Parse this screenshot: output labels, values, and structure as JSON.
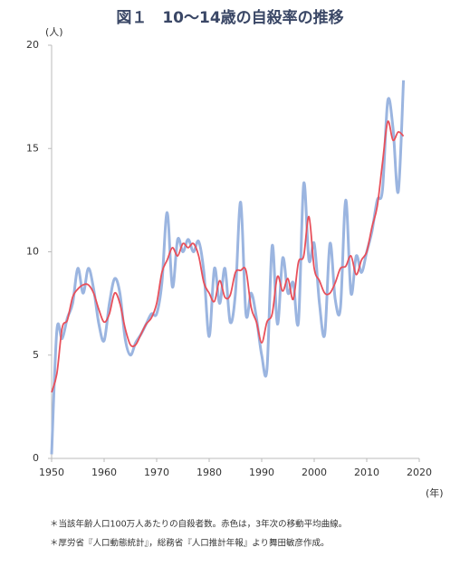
{
  "chart_data": {
    "type": "line",
    "title": "図１　10〜14歳の自殺率の推移",
    "y_label": "(人)",
    "x_label": "(年)",
    "notes": [
      "＊当該年齢人口100万人あたりの自殺者数。赤色は，3年次の移動平均曲線。",
      "＊厚労省『人口動態統計』，総務省『人口推計年報』より舞田敏彦作成。"
    ],
    "x": [
      1950,
      1951,
      1952,
      1953,
      1954,
      1955,
      1956,
      1957,
      1958,
      1959,
      1960,
      1961,
      1962,
      1963,
      1964,
      1965,
      1966,
      1967,
      1968,
      1969,
      1970,
      1971,
      1972,
      1973,
      1974,
      1975,
      1976,
      1977,
      1978,
      1979,
      1980,
      1981,
      1982,
      1983,
      1984,
      1985,
      1986,
      1987,
      1988,
      1989,
      1990,
      1991,
      1992,
      1993,
      1994,
      1995,
      1996,
      1997,
      1998,
      1999,
      2000,
      2001,
      2002,
      2003,
      2004,
      2005,
      2006,
      2007,
      2008,
      2009,
      2010,
      2011,
      2012,
      2013,
      2014,
      2015,
      2016,
      2017
    ],
    "series": [
      {
        "color": "#9bb5e0",
        "values": [
          0.2,
          6.2,
          5.8,
          6.8,
          7.5,
          9.2,
          8.0,
          9.2,
          8.2,
          6.5,
          5.7,
          7.5,
          8.7,
          8.0,
          5.8,
          5.0,
          5.6,
          6.0,
          6.5,
          7.0,
          7.0,
          8.5,
          11.9,
          8.3,
          10.6,
          10.0,
          10.6,
          10.0,
          10.5,
          9.0,
          5.9,
          9.2,
          7.5,
          9.2,
          6.6,
          8.0,
          12.4,
          7.0,
          8.0,
          6.8,
          5.0,
          4.3,
          10.3,
          6.5,
          9.7,
          8.0,
          8.5,
          6.6,
          13.3,
          9.6,
          10.4,
          7.5,
          6.0,
          10.4,
          7.7,
          7.3,
          12.5,
          8.0,
          9.8,
          9.0,
          10.0,
          11.0,
          12.5,
          13.0,
          17.3,
          16.0,
          12.9,
          18.3
        ]
      },
      {
        "color": "#e8505b",
        "values": [
          3.2,
          4.1,
          6.3,
          6.7,
          7.8,
          8.2,
          8.4,
          8.4,
          8.0,
          7.2,
          6.6,
          7.0,
          8.0,
          7.5,
          6.3,
          5.5,
          5.5,
          6.0,
          6.5,
          6.8,
          7.5,
          9.0,
          9.6,
          10.2,
          9.8,
          10.4,
          10.2,
          10.4,
          9.8,
          8.5,
          8.0,
          7.6,
          8.6,
          7.8,
          7.9,
          9.0,
          9.1,
          9.1,
          7.3,
          6.6,
          5.6,
          6.6,
          7.0,
          8.8,
          8.1,
          8.7,
          7.7,
          9.5,
          9.8,
          11.7,
          9.2,
          8.6,
          8.0,
          8.0,
          8.5,
          9.2,
          9.3,
          9.8,
          8.9,
          9.6,
          10.0,
          11.2,
          12.2,
          14.3,
          16.3,
          15.4,
          15.8,
          15.6
        ]
      }
    ],
    "xlim": [
      1950,
      2020
    ],
    "xticks": [
      1950,
      1960,
      1970,
      1980,
      1990,
      2000,
      2010,
      2020
    ],
    "ylim": [
      0,
      20
    ],
    "yticks": [
      0,
      5,
      10,
      15,
      20
    ]
  }
}
